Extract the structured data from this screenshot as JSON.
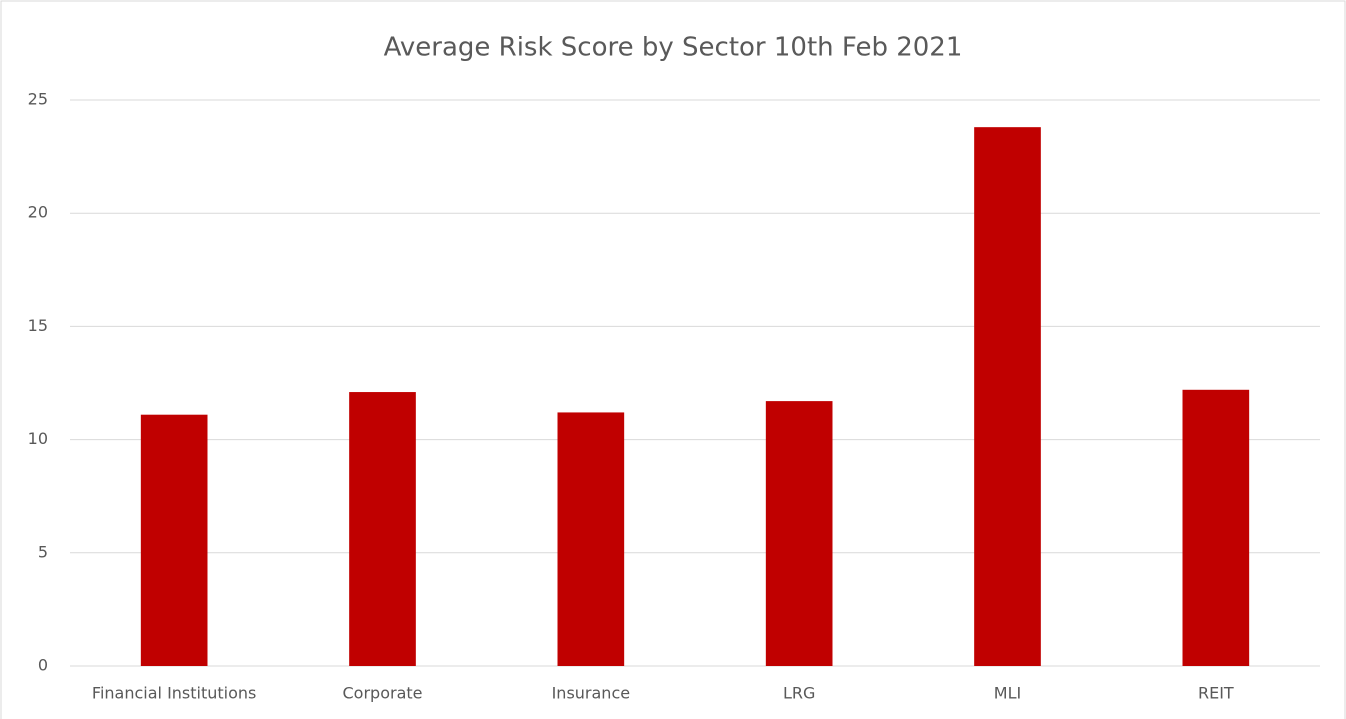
{
  "chart_data": {
    "type": "bar",
    "title": "Average Risk Score by Sector 10th Feb 2021",
    "categories": [
      "Financial Institutions",
      "Corporate",
      "Insurance",
      "LRG",
      "MLI",
      "REIT"
    ],
    "values": [
      11.1,
      12.1,
      11.2,
      11.7,
      23.8,
      12.2
    ],
    "color": "#c00000",
    "ylim": [
      0,
      25
    ],
    "yticks": [
      0,
      5,
      10,
      15,
      20,
      25
    ],
    "grid": true
  }
}
